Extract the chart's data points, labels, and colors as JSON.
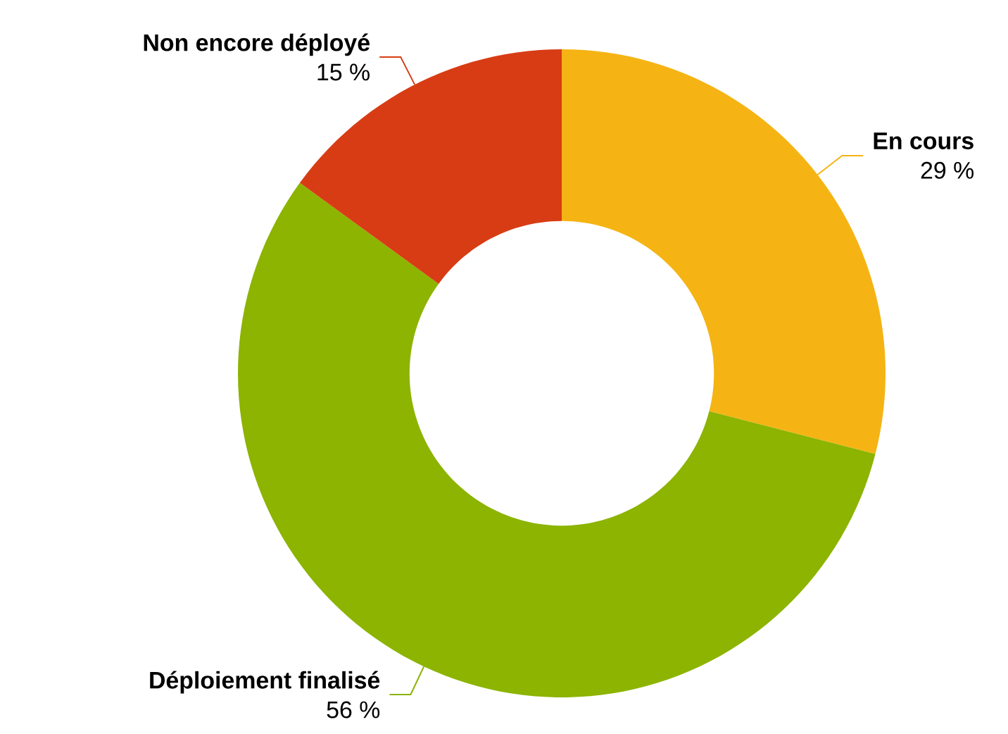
{
  "chart_data": {
    "type": "donut",
    "categories": [
      "En cours",
      "Déploiement finalisé",
      "Non encore déployé"
    ],
    "values": [
      29,
      56,
      15
    ],
    "colors": [
      "#f5b414",
      "#8cb400",
      "#d83c14"
    ],
    "value_labels": [
      "29 %",
      "56 %",
      "15 %"
    ]
  }
}
